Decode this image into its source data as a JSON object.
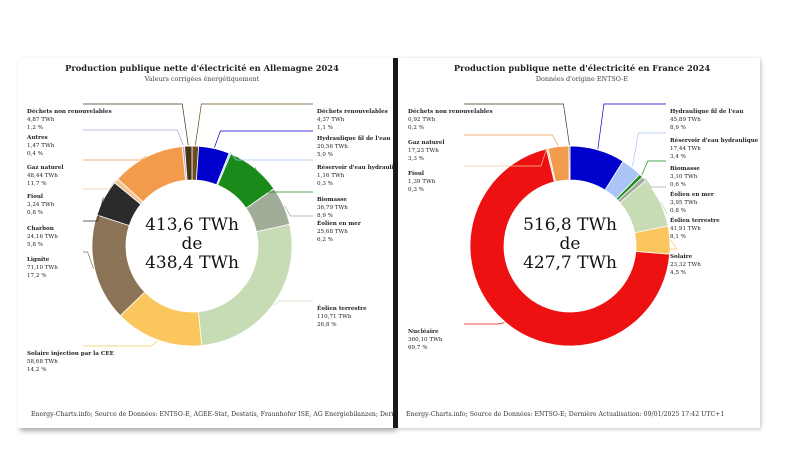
{
  "chart_data": [
    {
      "type": "donut",
      "title": "Production publique nette d'électricité en Allemagne 2024",
      "subtitle": "Valeurs corrigées énergétiquement",
      "center": [
        "413,6 TWh",
        "de",
        "438,4 TWh"
      ],
      "footer": "Energy-Charts.info; Source de Données: ENTSO-E, AGEE-Stat, Destatis, Fraunhofer ISE, AG Energiebilanzen; Dernière Ac",
      "series": [
        {
          "name": "Déchets renouvelables",
          "value_label": "4,37 TWh",
          "pct_label": "1,1 %",
          "value": 4.37,
          "color": "#6b4b1f"
        },
        {
          "name": "Hydraulique fil de l'eau",
          "value_label": "20,56 TWh",
          "pct_label": "5,0 %",
          "value": 20.56,
          "color": "#0000cc"
        },
        {
          "name": "Réservoir d'eau hydraulique",
          "value_label": "1,16 TWh",
          "pct_label": "0,3 %",
          "value": 1.16,
          "color": "#a9c4f5"
        },
        {
          "name": "Biomasse",
          "value_label": "36,79 TWh",
          "pct_label": "8,9 %",
          "value": 36.79,
          "color": "#1a8a1a"
        },
        {
          "name": "Éolien en mer",
          "value_label": "25,68 TWh",
          "pct_label": "6,2 %",
          "value": 25.68,
          "color": "#a2ad99"
        },
        {
          "name": "Éolien terrestre",
          "value_label": "110,71 TWh",
          "pct_label": "26,8 %",
          "value": 110.71,
          "color": "#c7dbb5"
        },
        {
          "name": "Solaire injection par la CEE",
          "value_label": "58,68 TWh",
          "pct_label": "14,2 %",
          "value": 58.68,
          "color": "#fbc65d"
        },
        {
          "name": "Lignite",
          "value_label": "71,10 TWh",
          "pct_label": "17,2 %",
          "value": 71.1,
          "color": "#8b7355"
        },
        {
          "name": "Charbon",
          "value_label": "24,16 TWh",
          "pct_label": "5,8 %",
          "value": 24.16,
          "color": "#2b2b2b"
        },
        {
          "name": "Fioul",
          "value_label": "3,24 TWh",
          "pct_label": "0,8 %",
          "value": 3.24,
          "color": "#f2c497"
        },
        {
          "name": "Gaz naturel",
          "value_label": "48,44 TWh",
          "pct_label": "11,7 %",
          "value": 48.44,
          "color": "#f39b4c"
        },
        {
          "name": "Autres",
          "value_label": "1,47 TWh",
          "pct_label": "0,4 %",
          "value": 1.47,
          "color": "#b3a3cf"
        },
        {
          "name": "Déchets non renouvelables",
          "value_label": "4,87 TWh",
          "pct_label": "1,2 %",
          "value": 4.87,
          "color": "#4a3416"
        }
      ]
    },
    {
      "type": "donut",
      "title": "Production publique nette d'électricité en France 2024",
      "subtitle": "Données d'origine ENTSO-E",
      "center": [
        "516,8 TWh",
        "de",
        "427,7 TWh"
      ],
      "footer": "Energy-Charts.info; Source de Données: ENTSO-E; Dernière Actualisation: 09/01/2025 17:42 UTC+1",
      "series": [
        {
          "name": "Hydraulique fil de l'eau",
          "value_label": "45,89 TWh",
          "pct_label": "8,9 %",
          "value": 45.89,
          "color": "#0000cc"
        },
        {
          "name": "Réservoir d'eau hydraulique",
          "value_label": "17,44 TWh",
          "pct_label": "3,4 %",
          "value": 17.44,
          "color": "#a9c4f5"
        },
        {
          "name": "Biomasse",
          "value_label": "3,10 TWh",
          "pct_label": "0,6 %",
          "value": 3.1,
          "color": "#1a8a1a"
        },
        {
          "name": "Éolien en mer",
          "value_label": "3,95 TWh",
          "pct_label": "0,8 %",
          "value": 3.95,
          "color": "#a2ad99"
        },
        {
          "name": "Éolien terrestre",
          "value_label": "41,91 TWh",
          "pct_label": "8,1 %",
          "value": 41.91,
          "color": "#c7dbb5"
        },
        {
          "name": "Solaire",
          "value_label": "23,32 TWh",
          "pct_label": "4,5 %",
          "value": 23.32,
          "color": "#fbc65d"
        },
        {
          "name": "Nucléaire",
          "value_label": "360,10 TWh",
          "pct_label": "69,7 %",
          "value": 360.1,
          "color": "#ee1111"
        },
        {
          "name": "Fioul",
          "value_label": "1,39 TWh",
          "pct_label": "0,3 %",
          "value": 1.39,
          "color": "#f2c497"
        },
        {
          "name": "Gaz naturel",
          "value_label": "17,23 TWh",
          "pct_label": "3,3 %",
          "value": 17.23,
          "color": "#f39b4c"
        },
        {
          "name": "Déchets non renouvelables",
          "value_label": "0,92 TWh",
          "pct_label": "0,2 %",
          "value": 0.92,
          "color": "#4a3416"
        }
      ]
    }
  ]
}
